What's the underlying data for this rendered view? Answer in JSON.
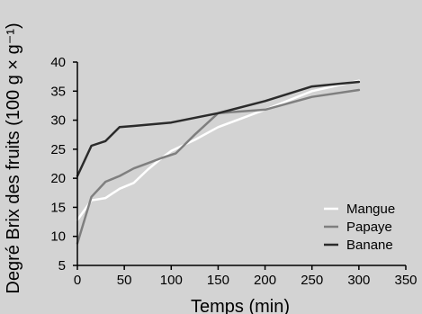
{
  "chart_data": {
    "type": "line",
    "title": "",
    "xlabel": "Temps (min)",
    "ylabel": "Degré Brix des fruits (100 g × g⁻¹)",
    "xlim": [
      0,
      350
    ],
    "ylim": [
      5,
      40
    ],
    "x_ticks": [
      0,
      50,
      100,
      150,
      200,
      250,
      300,
      350
    ],
    "y_ticks": [
      5,
      10,
      15,
      20,
      25,
      30,
      35,
      40
    ],
    "grid": false,
    "legend_position": "bottom-right",
    "series": [
      {
        "name": "Mangue",
        "color": "#ffffff",
        "points": [
          [
            0,
            12.8
          ],
          [
            15,
            16.2
          ],
          [
            30,
            16.6
          ],
          [
            45,
            18.2
          ],
          [
            60,
            19.2
          ],
          [
            75,
            21.5
          ],
          [
            90,
            23.5
          ],
          [
            100,
            24.7
          ],
          [
            125,
            26.6
          ],
          [
            150,
            28.8
          ],
          [
            200,
            31.8
          ],
          [
            250,
            35
          ],
          [
            300,
            36.8
          ]
        ]
      },
      {
        "name": "Papaye",
        "color": "#7f7f7f",
        "points": [
          [
            0,
            8.8
          ],
          [
            15,
            16.8
          ],
          [
            30,
            19.4
          ],
          [
            45,
            20.4
          ],
          [
            60,
            21.7
          ],
          [
            75,
            22.6
          ],
          [
            90,
            23.5
          ],
          [
            105,
            24.3
          ],
          [
            125,
            27.5
          ],
          [
            150,
            31.2
          ],
          [
            200,
            31.8
          ],
          [
            250,
            34
          ],
          [
            300,
            35.2
          ]
        ]
      },
      {
        "name": "Banane",
        "color": "#2b2b2b",
        "points": [
          [
            0,
            20.4
          ],
          [
            15,
            25.6
          ],
          [
            30,
            26.4
          ],
          [
            45,
            28.8
          ],
          [
            60,
            29
          ],
          [
            100,
            29.6
          ],
          [
            150,
            31.2
          ],
          [
            200,
            33.3
          ],
          [
            250,
            35.8
          ],
          [
            300,
            36.6
          ]
        ]
      }
    ]
  }
}
